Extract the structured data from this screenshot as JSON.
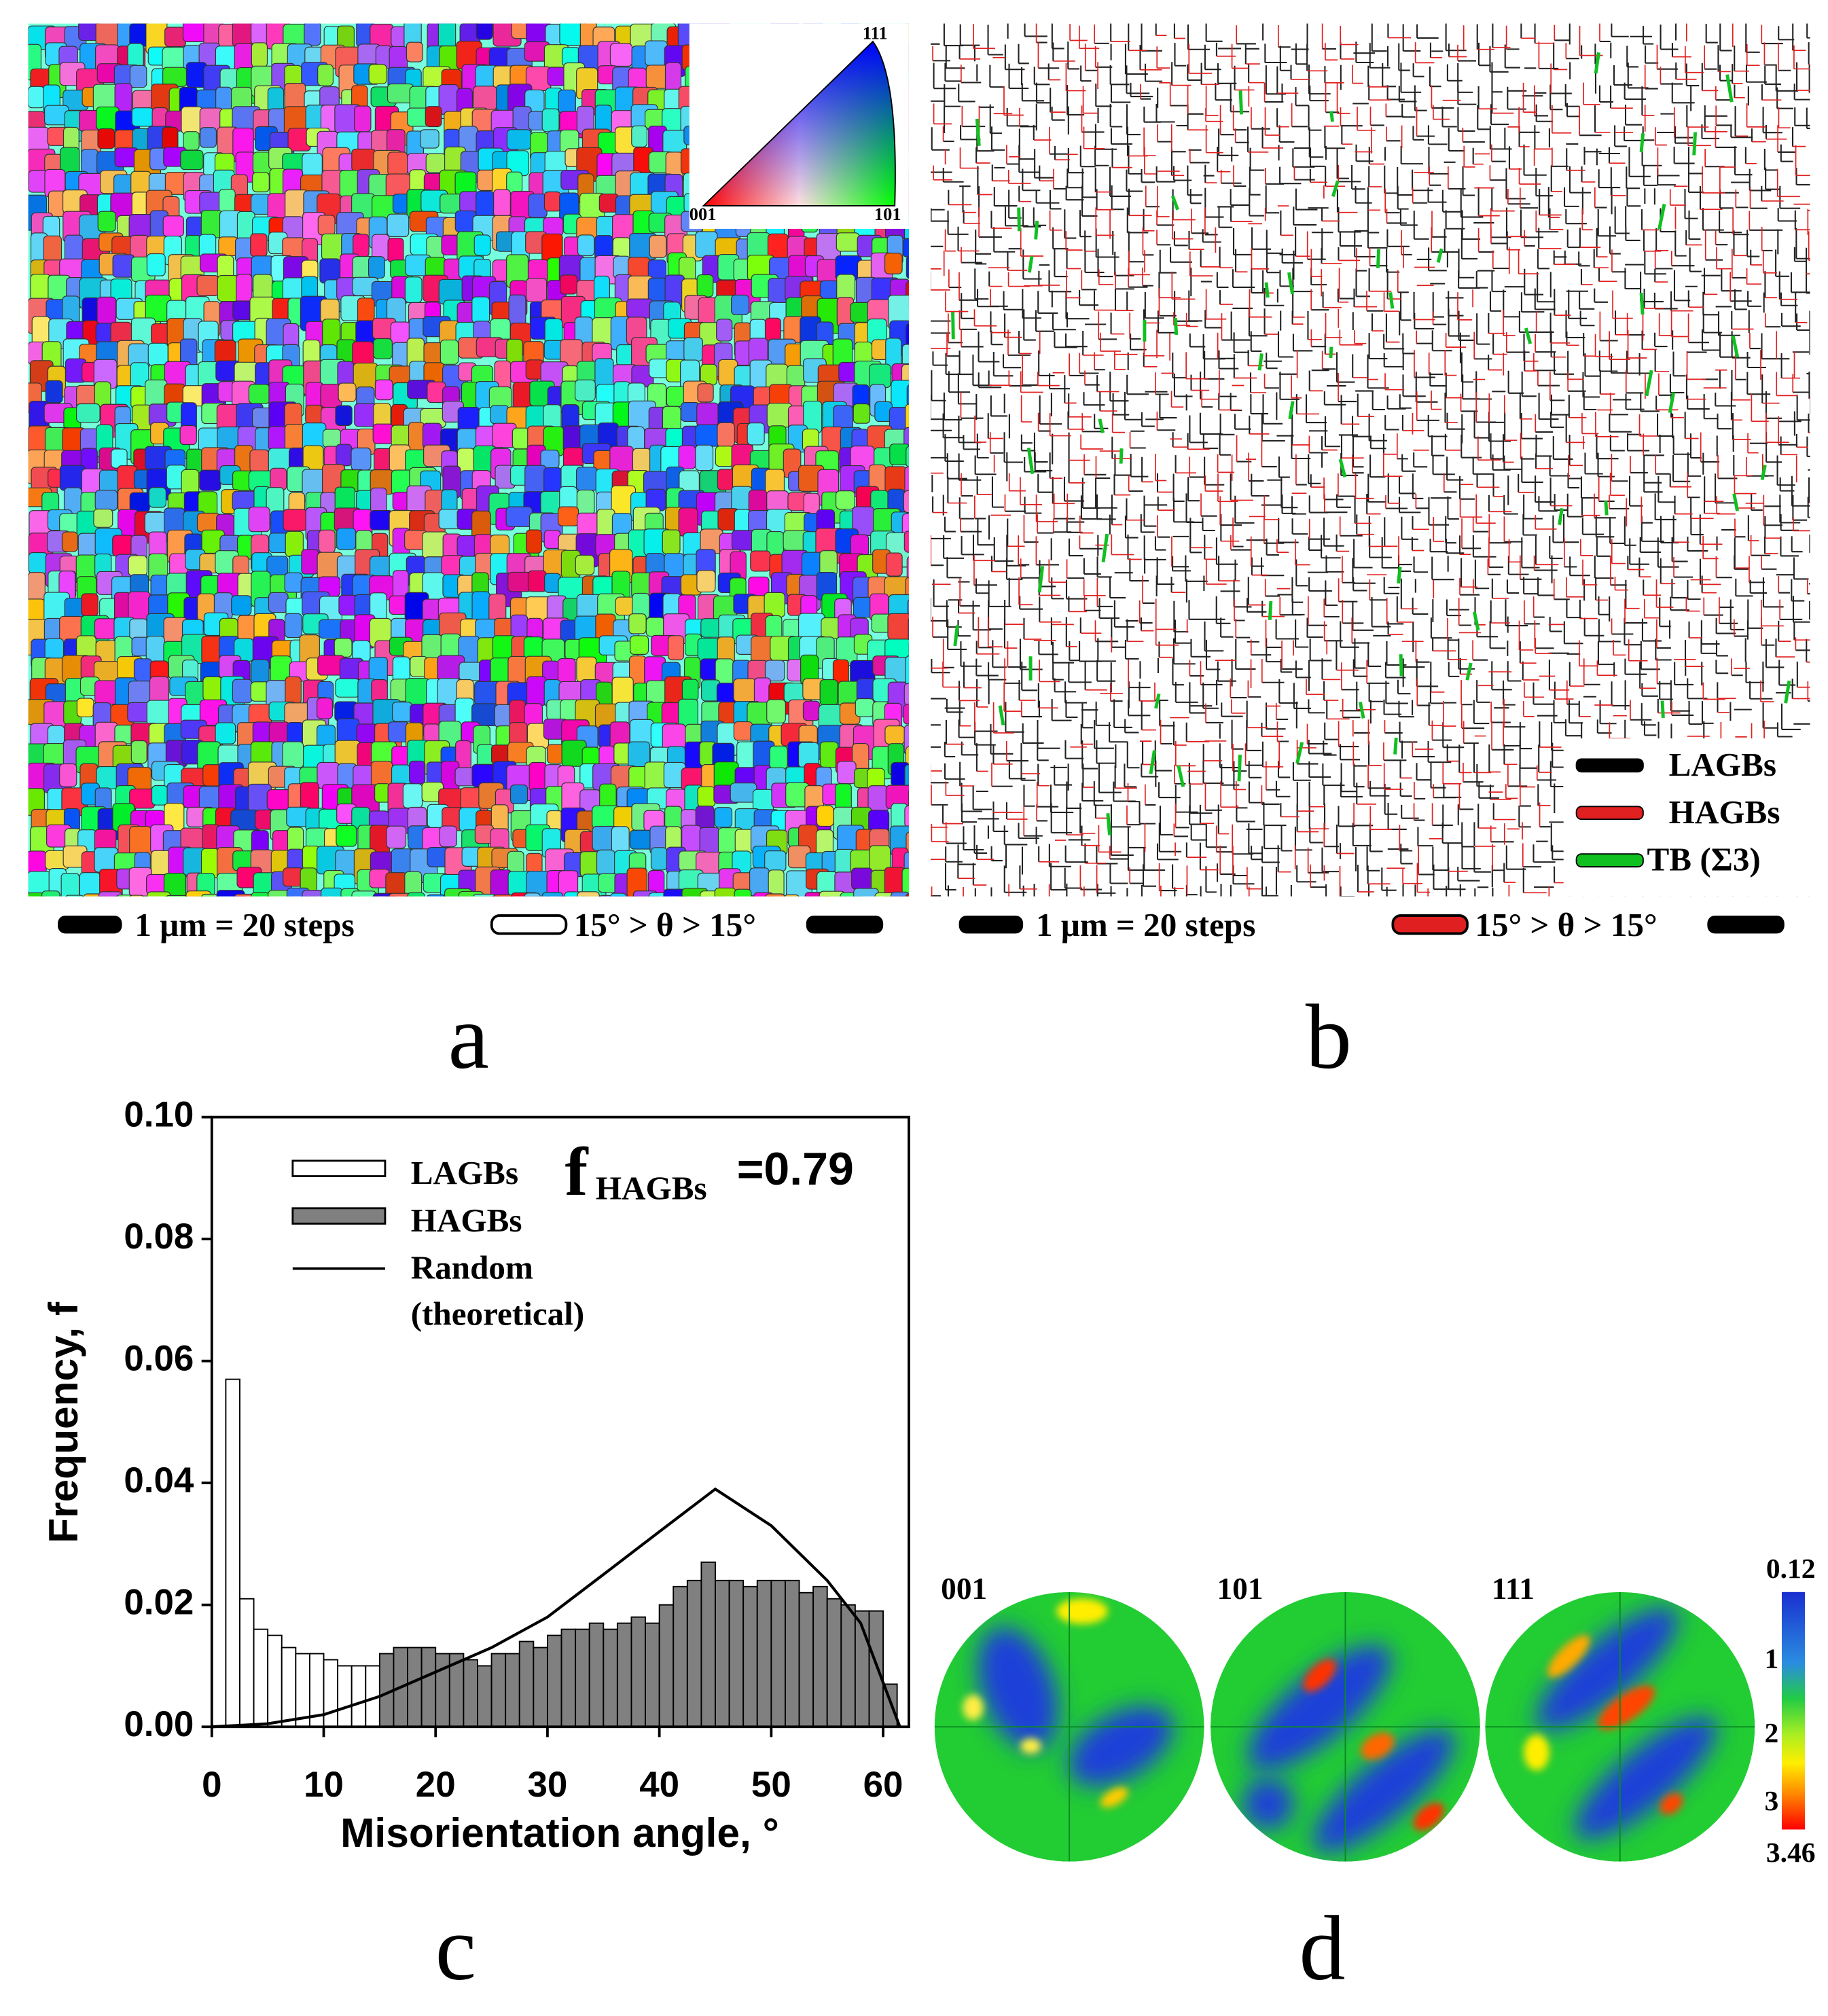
{
  "panel_a": {
    "triangle_labels": [
      "111",
      "001",
      "101"
    ],
    "scale_text": "1 μm = 20 steps",
    "boundary_text": "15° > θ > 15°",
    "label": "a"
  },
  "panel_b": {
    "legend": [
      "LAGBs",
      "HAGBs",
      "TB (Σ3)"
    ],
    "scale_text": "1 μm = 20 steps",
    "boundary_text": "15° > θ > 15°",
    "label": "b"
  },
  "chart_data": {
    "type": "histogram",
    "xlabel": "Misorientation angle, °",
    "ylabel": "Frequency, f",
    "annotation": {
      "main": "f",
      "sub": "HAGBs",
      "value": "=0.79"
    },
    "bins": [
      1.25,
      2.5,
      3.75,
      5,
      6.25,
      7.5,
      8.75,
      10,
      11.25,
      12.5,
      13.75,
      15,
      16.25,
      17.5,
      18.75,
      20,
      21.25,
      22.5,
      23.75,
      25,
      26.25,
      27.5,
      28.75,
      30,
      31.25,
      32.5,
      33.75,
      35,
      36.25,
      37.5,
      38.75,
      40,
      41.25,
      42.5,
      43.75,
      45,
      46.25,
      47.5,
      48.75,
      50,
      51.25,
      52.5,
      53.75,
      55,
      56.25,
      57.5,
      58.75,
      60,
      61.25
    ],
    "series": [
      {
        "name": "LAGBs",
        "color": "#ffffff",
        "values": [
          0.057,
          0.021,
          0.016,
          0.015,
          0.013,
          0.012,
          0.012,
          0.011,
          0.01,
          0.01,
          0.01,
          null,
          null,
          null,
          null,
          null,
          null,
          null,
          null,
          null,
          null,
          null,
          null,
          null,
          null,
          null,
          null,
          null,
          null,
          null,
          null,
          null,
          null,
          null,
          null,
          null,
          null,
          null,
          null,
          null,
          null,
          null,
          null,
          null,
          null,
          null,
          null,
          null
        ]
      },
      {
        "name": "HAGBs",
        "color": "#808080",
        "values": [
          null,
          null,
          null,
          null,
          null,
          null,
          null,
          null,
          null,
          null,
          null,
          0.012,
          0.013,
          0.013,
          0.013,
          0.012,
          0.012,
          0.011,
          0.01,
          0.012,
          0.012,
          0.014,
          0.013,
          0.015,
          0.016,
          0.016,
          0.017,
          0.016,
          0.017,
          0.018,
          0.017,
          0.02,
          0.023,
          0.024,
          0.027,
          0.024,
          0.024,
          0.023,
          0.024,
          0.024,
          0.024,
          0.022,
          0.023,
          0.021,
          0.02,
          0.019,
          0.019,
          0.007
        ]
      }
    ],
    "random": {
      "name": [
        "Random",
        "(theoretical)"
      ],
      "color": "#000000",
      "x": [
        0,
        5,
        10,
        15,
        20,
        25,
        30,
        35,
        40,
        45,
        50,
        55,
        58,
        61.5
      ],
      "values": [
        0,
        0.0005,
        0.002,
        0.005,
        0.009,
        0.013,
        0.018,
        0.025,
        0.032,
        0.039,
        0.033,
        0.024,
        0.017,
        0
      ]
    },
    "xlim": [
      0,
      62.3
    ],
    "ylim": [
      0,
      0.1
    ],
    "xticks": [
      0,
      10,
      20,
      30,
      40,
      50,
      60
    ],
    "yticks": [
      {
        "value": 0,
        "label": "0.00"
      },
      {
        "value": 0.02,
        "label": "0.02"
      },
      {
        "value": 0.04,
        "label": "0.04"
      },
      {
        "value": 0.06,
        "label": "0.06"
      },
      {
        "value": 0.08,
        "label": "0.08"
      },
      {
        "value": 0.1,
        "label": "0.10"
      }
    ],
    "label": "c"
  },
  "panel_d": {
    "figures": [
      "001",
      "101",
      "111"
    ],
    "colorbar": [
      "0.12",
      "1",
      "2",
      "3",
      "3.46"
    ],
    "label": "d"
  }
}
